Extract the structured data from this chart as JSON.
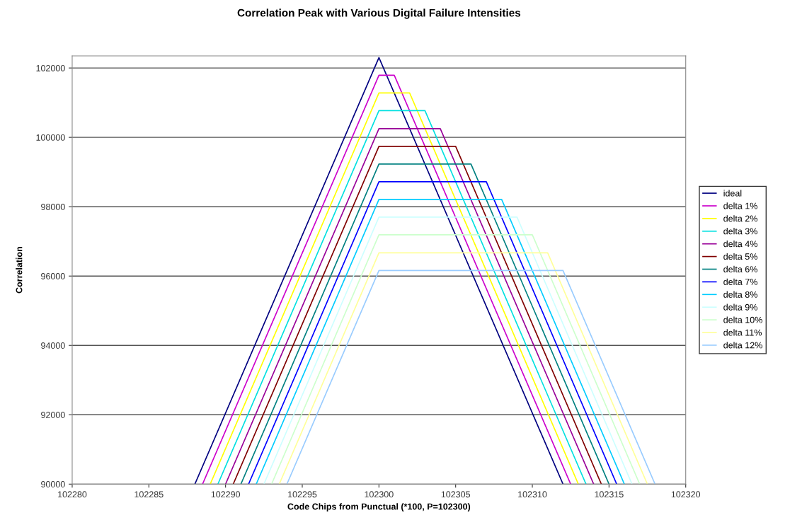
{
  "chart_data": {
    "type": "line",
    "title": "Correlation Peak with Various Digital Failure Intensities",
    "xlabel": "Code Chips from Punctual (*100, P=102300)",
    "ylabel": "Correlation",
    "xlim": [
      102280,
      102320
    ],
    "xticks": [
      102280,
      102285,
      102290,
      102295,
      102300,
      102305,
      102310,
      102315,
      102320
    ],
    "ylim": [
      90000,
      102350
    ],
    "yticks": [
      90000,
      92000,
      94000,
      96000,
      98000,
      100000,
      102000
    ],
    "grid": "y",
    "legend": "right",
    "marker": "none",
    "line_style": "solid",
    "series": [
      {
        "name": "ideal",
        "color": "#000080",
        "x": [
          102288,
          102300,
          102312
        ],
        "values": [
          90000,
          102300,
          90000
        ]
      },
      {
        "name": "delta 1%",
        "color": "#cc00cc",
        "x": [
          102288.5,
          102300,
          102301,
          102312.5
        ],
        "values": [
          90000,
          101790,
          101790,
          90000
        ]
      },
      {
        "name": "delta 2%",
        "color": "#ffff00",
        "x": [
          102289,
          102300,
          102302,
          102313
        ],
        "values": [
          90000,
          101280,
          101280,
          90000
        ]
      },
      {
        "name": "delta 3%",
        "color": "#00e0e0",
        "x": [
          102289.5,
          102300,
          102303,
          102313.5
        ],
        "values": [
          90000,
          100770,
          100770,
          90000
        ]
      },
      {
        "name": "delta 4%",
        "color": "#990099",
        "x": [
          102290,
          102300,
          102304,
          102314
        ],
        "values": [
          90000,
          100250,
          100250,
          90000
        ]
      },
      {
        "name": "delta 5%",
        "color": "#800000",
        "x": [
          102290.5,
          102300,
          102305,
          102314.5
        ],
        "values": [
          90000,
          99740,
          99740,
          90000
        ]
      },
      {
        "name": "delta 6%",
        "color": "#008080",
        "x": [
          102291,
          102300,
          102306,
          102315
        ],
        "values": [
          90000,
          99230,
          99230,
          90000
        ]
      },
      {
        "name": "delta 7%",
        "color": "#0000ff",
        "x": [
          102291.5,
          102300,
          102307,
          102315.5
        ],
        "values": [
          90000,
          98720,
          98720,
          90000
        ]
      },
      {
        "name": "delta 8%",
        "color": "#00ccff",
        "x": [
          102292,
          102300,
          102308,
          102316
        ],
        "values": [
          90000,
          98210,
          98210,
          90000
        ]
      },
      {
        "name": "delta 9%",
        "color": "#ccffff",
        "x": [
          102292.5,
          102300,
          102309,
          102316.5
        ],
        "values": [
          90000,
          97700,
          97700,
          90000
        ]
      },
      {
        "name": "delta 10%",
        "color": "#ccffcc",
        "x": [
          102293,
          102300,
          102310,
          102317
        ],
        "values": [
          90000,
          97190,
          97190,
          90000
        ]
      },
      {
        "name": "delta 11%",
        "color": "#ffff99",
        "x": [
          102293.5,
          102300,
          102311,
          102317.5
        ],
        "values": [
          90000,
          96670,
          96670,
          90000
        ]
      },
      {
        "name": "delta 12%",
        "color": "#99ccff",
        "x": [
          102294,
          102300,
          102312,
          102318
        ],
        "values": [
          90000,
          96160,
          96160,
          90000
        ]
      }
    ]
  }
}
